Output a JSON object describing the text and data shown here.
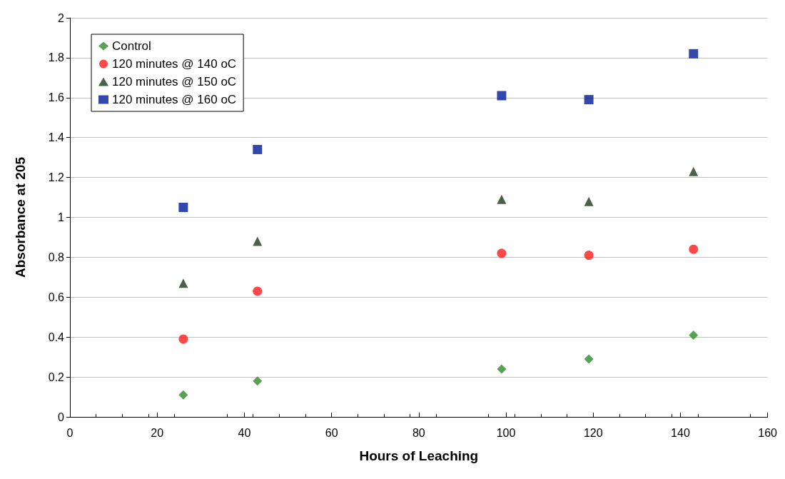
{
  "chart_data": {
    "type": "scatter",
    "xlabel": "Hours of Leaching",
    "ylabel": "Absorbance at 205",
    "x": [
      26,
      43,
      99,
      119,
      143
    ],
    "series": [
      {
        "name": "Control",
        "color": "#2e8b2e",
        "marker": "diamond",
        "values": [
          0.11,
          0.18,
          0.24,
          0.29,
          0.41
        ]
      },
      {
        "name": "120 minutes @ 140 oC",
        "color": "#ff1a1a",
        "marker": "circle",
        "values": [
          0.39,
          0.63,
          0.82,
          0.81,
          0.84
        ]
      },
      {
        "name": "120 minutes @ 150 oC",
        "color": "#1b3b1b",
        "marker": "triangle",
        "values": [
          0.67,
          0.88,
          1.09,
          1.08,
          1.23
        ]
      },
      {
        "name": "120 minutes @ 160 oC",
        "color": "#001a99",
        "marker": "square",
        "values": [
          1.05,
          1.34,
          1.61,
          1.59,
          1.82
        ]
      }
    ],
    "xlim": [
      0,
      160
    ],
    "xticks": [
      0,
      20,
      40,
      60,
      80,
      100,
      120,
      140,
      160
    ],
    "ylim": [
      0,
      2
    ],
    "yticks": [
      0,
      0.2,
      0.4,
      0.6,
      0.8,
      1,
      1.2,
      1.4,
      1.6,
      1.8,
      2
    ],
    "grid": "y",
    "legend": "top left"
  }
}
